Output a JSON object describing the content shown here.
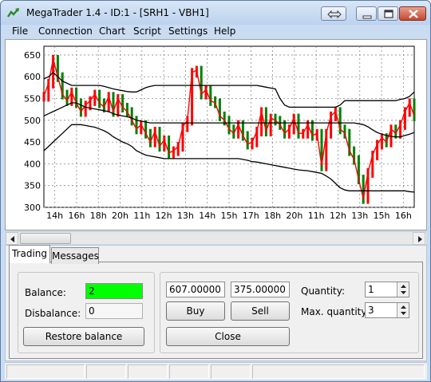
{
  "window": {
    "title": "MegaTrader 1.4 - ID:1 - [SRH1 - VBH1]"
  },
  "menu": [
    "File",
    "Connection",
    "Chart",
    "Script",
    "Settings",
    "Help"
  ],
  "colors": {
    "price_up": "#ff0000",
    "price_down": "#008000",
    "envelope": "#000000",
    "balance_highlight": "#00ff00"
  },
  "chart_data": {
    "type": "line",
    "title": "",
    "xlabel": "",
    "ylabel": "",
    "ylim": [
      300,
      670
    ],
    "grid": true,
    "y_ticks": [
      300,
      350,
      400,
      450,
      500,
      550,
      600,
      650
    ],
    "x_ticks": [
      "14h",
      "16h",
      "18h",
      "20h",
      "11h",
      "12h",
      "13h",
      "14h",
      "15h",
      "17h",
      "18h",
      "20h",
      "11h",
      "12h",
      "13h",
      "15h",
      "16h"
    ],
    "x": [
      0,
      2,
      4,
      6,
      8,
      10,
      12,
      14,
      16,
      18,
      20,
      22,
      24,
      26,
      28,
      30,
      32,
      34,
      36,
      38,
      40,
      42,
      44,
      46,
      48,
      50,
      52,
      54,
      56,
      58,
      60,
      62,
      64,
      66,
      68,
      70,
      72,
      74,
      76,
      78,
      80,
      82,
      84,
      86,
      88,
      90,
      92,
      94,
      96,
      98,
      100,
      102,
      104,
      106,
      108,
      110,
      112,
      114,
      116,
      118,
      120,
      122,
      124,
      126,
      128,
      130,
      132,
      134,
      136,
      138,
      140,
      142,
      144,
      146,
      148,
      150,
      152,
      154,
      156,
      158,
      160
    ],
    "series": [
      {
        "values": [
          555,
          585,
          640,
          600,
          560,
          545,
          565,
          540,
          520,
          535,
          545,
          560,
          540,
          530,
          555,
          520,
          550,
          530,
          520,
          500,
          480,
          490,
          470,
          450,
          475,
          440,
          455,
          425,
          430,
          440,
          485,
          500,
          610,
          615,
          560,
          570,
          545,
          540,
          510,
          500,
          480,
          470,
          490,
          465,
          445,
          450,
          475,
          520,
          475,
          505,
          500,
          490,
          470,
          480,
          505,
          470,
          470,
          490,
          465,
          470,
          395,
          470,
          510,
          520,
          480,
          470,
          430,
          410,
          365,
          320,
          380,
          420,
          445,
          460,
          450,
          480,
          470,
          490,
          520,
          540,
          510
        ]
      },
      {
        "values": [
          595,
          600,
          610,
          600,
          590,
          585,
          580,
          580,
          580,
          580,
          580,
          580,
          580,
          578,
          575,
          572,
          570,
          568,
          566,
          565,
          565,
          570,
          575,
          578,
          580,
          580,
          580,
          580,
          580,
          580,
          580,
          580,
          580,
          580,
          580,
          580,
          580,
          580,
          580,
          580,
          580,
          580,
          580,
          580,
          580,
          580,
          580,
          578,
          576,
          574,
          572,
          550,
          535,
          530,
          530,
          530,
          530,
          530,
          530,
          530,
          530,
          530,
          530,
          530,
          535,
          545,
          545,
          545,
          545,
          545,
          545,
          545,
          545,
          545,
          545,
          545,
          545,
          548,
          550,
          555,
          565
        ]
      },
      {
        "values": [
          510,
          515,
          520,
          525,
          530,
          535,
          540,
          540,
          535,
          530,
          528,
          526,
          524,
          522,
          520,
          515,
          512,
          510,
          508,
          505,
          500,
          498,
          496,
          494,
          494,
          494,
          494,
          494,
          494,
          494,
          494,
          494,
          494,
          494,
          494,
          494,
          494,
          494,
          494,
          494,
          494,
          494,
          494,
          494,
          494,
          494,
          494,
          494,
          494,
          494,
          494,
          494,
          494,
          494,
          494,
          494,
          494,
          494,
          494,
          494,
          494,
          494,
          494,
          494,
          494,
          494,
          494,
          494,
          492,
          490,
          485,
          478,
          472,
          468,
          465,
          463,
          462,
          462,
          465,
          468,
          472
        ]
      },
      {
        "values": [
          430,
          440,
          450,
          460,
          470,
          480,
          490,
          490,
          490,
          488,
          486,
          484,
          480,
          476,
          470,
          462,
          456,
          450,
          446,
          440,
          430,
          425,
          420,
          418,
          416,
          414,
          412,
          412,
          412,
          412,
          412,
          412,
          412,
          412,
          412,
          412,
          412,
          412,
          412,
          412,
          412,
          412,
          412,
          410,
          408,
          405,
          404,
          402,
          400,
          398,
          396,
          394,
          392,
          390,
          388,
          386,
          385,
          384,
          382,
          380,
          378,
          372,
          365,
          355,
          345,
          340,
          338,
          338,
          338,
          338,
          338,
          338,
          338,
          338,
          338,
          338,
          338,
          338,
          338,
          336,
          335
        ]
      }
    ]
  },
  "tabs": [
    {
      "label": "Trading",
      "active": true
    },
    {
      "label": "Messages",
      "active": false
    }
  ],
  "trading": {
    "balance_label": "Balance:",
    "balance_value": "2",
    "disbalance_label": "Disbalance:",
    "disbalance_value": "0",
    "restore_button": "Restore balance",
    "buy_price": "607.00000",
    "sell_price": "375.00000",
    "buy_button": "Buy",
    "sell_button": "Sell",
    "close_button": "Close",
    "quantity_label": "Quantity:",
    "quantity_value": "1",
    "max_quantity_label": "Max. quantity:",
    "max_quantity_value": "3"
  }
}
